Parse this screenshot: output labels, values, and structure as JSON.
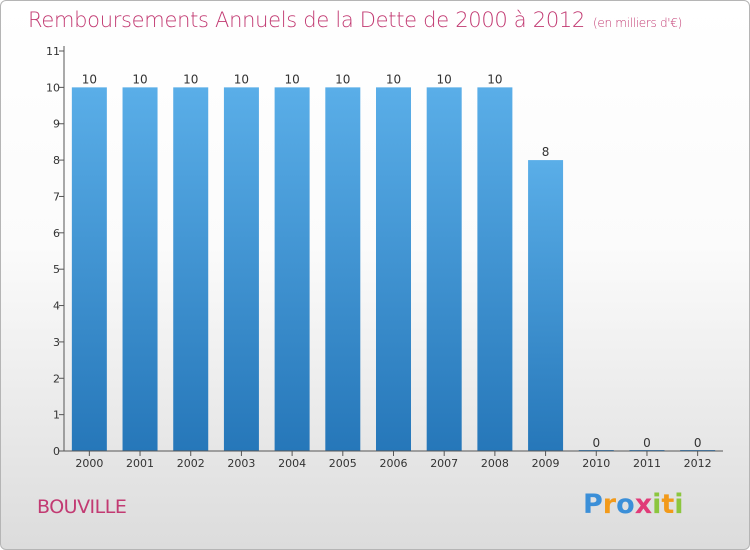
{
  "chart_data": {
    "type": "bar",
    "title": "Remboursements Annuels de la Dette de 2000 à 2012",
    "unit_note": "(en milliers d'€)",
    "categories": [
      "2000",
      "2001",
      "2002",
      "2003",
      "2004",
      "2005",
      "2006",
      "2007",
      "2008",
      "2009",
      "2010",
      "2011",
      "2012"
    ],
    "values": [
      10,
      10,
      10,
      10,
      10,
      10,
      10,
      10,
      10,
      8,
      0,
      0,
      0
    ],
    "ylim": [
      0,
      11
    ],
    "yticks": [
      0,
      1,
      2,
      3,
      4,
      5,
      6,
      7,
      8,
      9,
      10,
      11
    ],
    "xlabel": "",
    "ylabel": "",
    "grid": false,
    "bar_color": "#3a8fd6",
    "bar_color_light": "#5aaee8",
    "bar_color_dark": "#2677b9"
  },
  "commune": "BOUVILLE",
  "logo": {
    "letters": [
      "P",
      "r",
      "o",
      "x",
      "i",
      "t",
      "i"
    ],
    "colors": [
      "#3b8fd8",
      "#f29a1a",
      "#3b8fd8",
      "#e13b78",
      "#8cc63e",
      "#f29a1a",
      "#8cc63e"
    ]
  },
  "colors": {
    "accent": "#c23a72",
    "axis": "#333333"
  }
}
